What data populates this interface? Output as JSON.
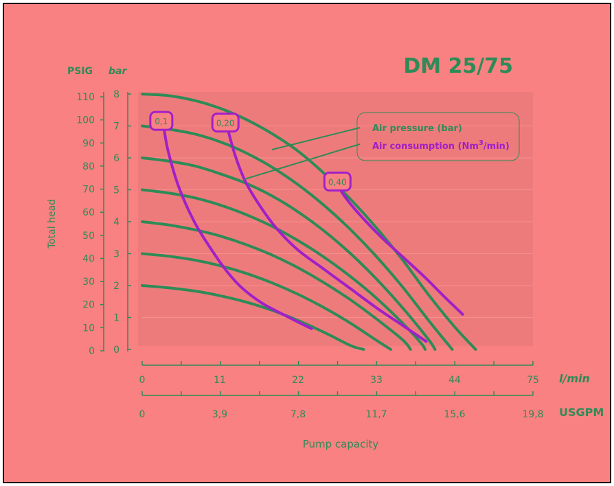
{
  "chart_data": {
    "type": "line",
    "title": "DM 25/75",
    "xlabel": "Pump capacity",
    "ylabel": "Total head",
    "x_unit_primary": "l/min",
    "x_unit_secondary": "USGPM",
    "y_unit_left": "PSIG",
    "y_unit_right": "bar",
    "x_ticks_lmin": [
      "0",
      "11",
      "22",
      "33",
      "44",
      "75"
    ],
    "x_ticks_usgpm": [
      "0",
      "3,9",
      "7,8",
      "11,7",
      "15,6",
      "19,8"
    ],
    "y_ticks_psig": [
      "110",
      "100",
      "90",
      "80",
      "70",
      "60",
      "50",
      "40",
      "30",
      "20",
      "10",
      "0"
    ],
    "y_ticks_bar": [
      "8",
      "7",
      "6",
      "5",
      "4",
      "3",
      "2",
      "1",
      "0"
    ],
    "xlim": [
      0,
      75
    ],
    "ylim_bar": [
      0,
      8
    ],
    "legend": [
      {
        "label": "Air pressure (bar)",
        "color": "#2e8b57"
      },
      {
        "label_prefix": "Air consumption (Nm",
        "label_sup": "3",
        "label_suffix": "/min)",
        "color": "#a020c8"
      }
    ],
    "colors": {
      "pressure": "#2e8b57",
      "consumption": "#a020c8",
      "text": "#2e8b57",
      "background": "#f98181",
      "plot_area": "#ee7b7b"
    },
    "pressure_series": [
      {
        "name": "8",
        "points": [
          [
            0,
            8.0
          ],
          [
            5,
            7.95
          ],
          [
            10,
            7.8
          ],
          [
            15,
            7.55
          ],
          [
            20,
            7.2
          ],
          [
            25,
            6.75
          ],
          [
            30,
            6.2
          ],
          [
            35,
            5.5
          ],
          [
            40,
            4.7
          ],
          [
            45,
            3.8
          ],
          [
            50,
            2.8
          ],
          [
            55,
            1.7
          ],
          [
            60,
            0.7
          ],
          [
            64,
            0
          ]
        ]
      },
      {
        "name": "7",
        "points": [
          [
            0,
            7.0
          ],
          [
            5,
            6.9
          ],
          [
            10,
            6.75
          ],
          [
            15,
            6.5
          ],
          [
            20,
            6.15
          ],
          [
            25,
            5.7
          ],
          [
            30,
            5.15
          ],
          [
            35,
            4.5
          ],
          [
            40,
            3.75
          ],
          [
            45,
            2.9
          ],
          [
            50,
            1.95
          ],
          [
            55,
            0.9
          ],
          [
            59.5,
            0
          ]
        ]
      },
      {
        "name": "6",
        "points": [
          [
            0,
            6.0
          ],
          [
            5,
            5.9
          ],
          [
            10,
            5.75
          ],
          [
            15,
            5.5
          ],
          [
            20,
            5.2
          ],
          [
            25,
            4.8
          ],
          [
            30,
            4.3
          ],
          [
            35,
            3.7
          ],
          [
            40,
            3.0
          ],
          [
            45,
            2.2
          ],
          [
            50,
            1.3
          ],
          [
            55,
            0.3
          ],
          [
            56.2,
            0
          ]
        ]
      },
      {
        "name": "5",
        "points": [
          [
            0,
            5.0
          ],
          [
            5,
            4.9
          ],
          [
            10,
            4.75
          ],
          [
            15,
            4.52
          ],
          [
            20,
            4.22
          ],
          [
            25,
            3.85
          ],
          [
            30,
            3.4
          ],
          [
            35,
            2.88
          ],
          [
            40,
            2.28
          ],
          [
            45,
            1.6
          ],
          [
            50,
            0.82
          ],
          [
            53.5,
            0.2
          ],
          [
            54.3,
            0
          ]
        ]
      },
      {
        "name": "4",
        "points": [
          [
            0,
            4.0
          ],
          [
            5,
            3.9
          ],
          [
            10,
            3.75
          ],
          [
            15,
            3.55
          ],
          [
            20,
            3.28
          ],
          [
            25,
            2.95
          ],
          [
            30,
            2.55
          ],
          [
            35,
            2.08
          ],
          [
            40,
            1.55
          ],
          [
            45,
            0.95
          ],
          [
            50,
            0.3
          ],
          [
            51.5,
            0
          ]
        ]
      },
      {
        "name": "3",
        "points": [
          [
            0,
            3.0
          ],
          [
            5,
            2.92
          ],
          [
            10,
            2.8
          ],
          [
            15,
            2.62
          ],
          [
            20,
            2.38
          ],
          [
            25,
            2.08
          ],
          [
            30,
            1.72
          ],
          [
            35,
            1.3
          ],
          [
            40,
            0.82
          ],
          [
            45,
            0.28
          ],
          [
            47.7,
            0
          ]
        ]
      },
      {
        "name": "2",
        "points": [
          [
            0,
            2.0
          ],
          [
            5,
            1.93
          ],
          [
            10,
            1.83
          ],
          [
            15,
            1.68
          ],
          [
            20,
            1.48
          ],
          [
            25,
            1.22
          ],
          [
            30,
            0.9
          ],
          [
            35,
            0.53
          ],
          [
            40,
            0.12
          ],
          [
            42.5,
            0
          ]
        ]
      }
    ],
    "consumption_series": [
      {
        "name": "0,1",
        "points": [
          [
            4.2,
            6.9
          ],
          [
            5,
            6.2
          ],
          [
            7,
            5.1
          ],
          [
            10,
            4.0
          ],
          [
            13,
            3.2
          ],
          [
            16,
            2.5
          ],
          [
            19,
            1.95
          ],
          [
            23,
            1.45
          ],
          [
            27,
            1.1
          ],
          [
            30,
            0.85
          ],
          [
            32.5,
            0.65
          ]
        ]
      },
      {
        "name": "0,20",
        "points": [
          [
            16.5,
            6.85
          ],
          [
            18,
            6.0
          ],
          [
            20,
            5.2
          ],
          [
            23,
            4.4
          ],
          [
            26,
            3.75
          ],
          [
            30,
            3.1
          ],
          [
            35,
            2.5
          ],
          [
            40,
            1.9
          ],
          [
            45,
            1.3
          ],
          [
            50,
            0.75
          ],
          [
            54.5,
            0.25
          ]
        ]
      },
      {
        "name": "0,40",
        "points": [
          [
            38,
            5.0
          ],
          [
            40,
            4.55
          ],
          [
            43,
            4.0
          ],
          [
            46,
            3.5
          ],
          [
            50,
            2.9
          ],
          [
            54,
            2.3
          ],
          [
            58,
            1.65
          ],
          [
            61.5,
            1.1
          ]
        ]
      }
    ]
  }
}
